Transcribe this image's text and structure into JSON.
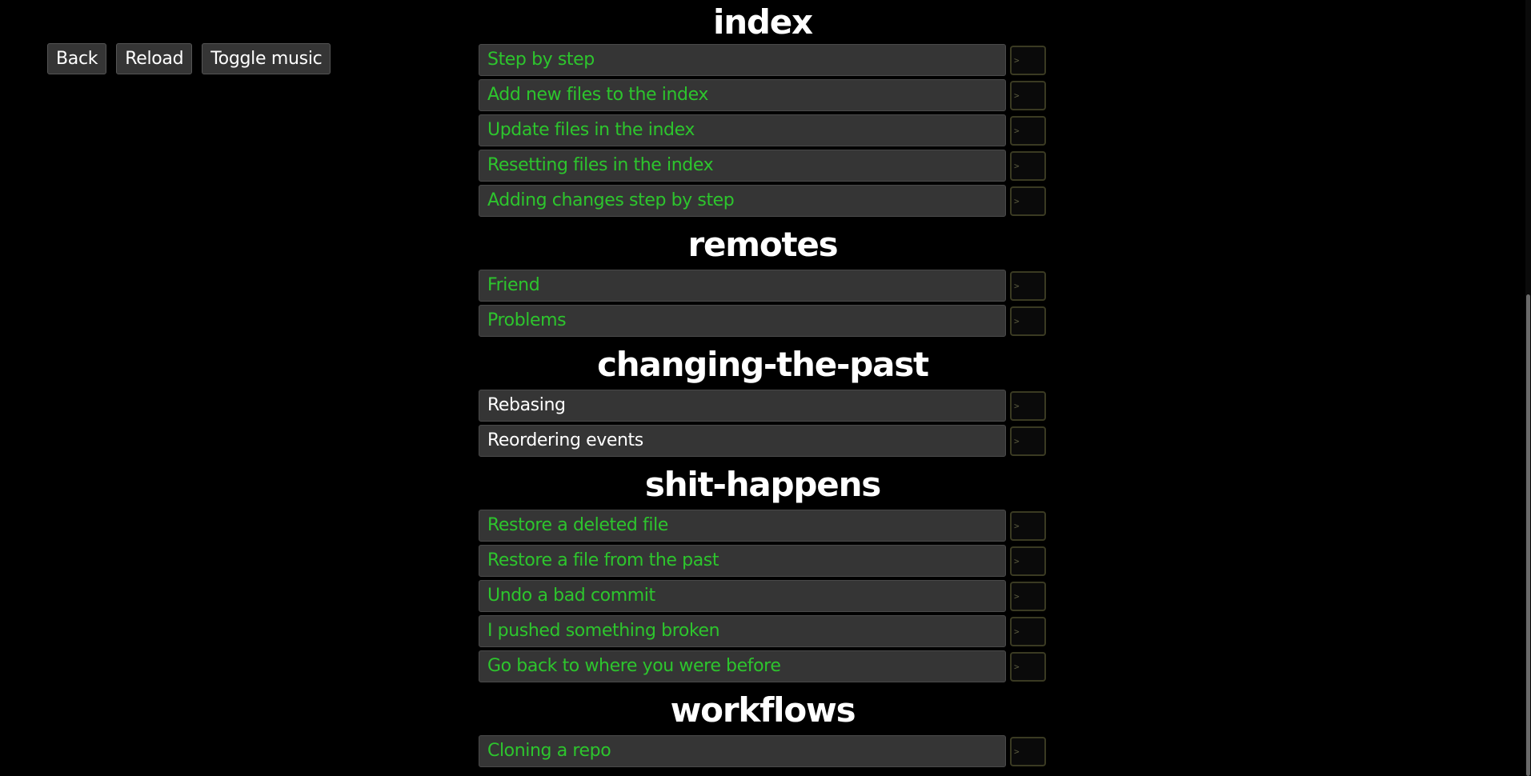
{
  "toolbar": {
    "back_label": "Back",
    "reload_label": "Reload",
    "toggle_music_label": "Toggle music"
  },
  "terminal_glyph": ">",
  "chapters": [
    {
      "title": "index",
      "levels": [
        {
          "label": "Step by step",
          "solved": true
        },
        {
          "label": "Add new files to the index",
          "solved": true
        },
        {
          "label": "Update files in the index",
          "solved": true
        },
        {
          "label": "Resetting files in the index",
          "solved": true
        },
        {
          "label": "Adding changes step by step",
          "solved": true
        }
      ]
    },
    {
      "title": "remotes",
      "levels": [
        {
          "label": "Friend",
          "solved": true
        },
        {
          "label": "Problems",
          "solved": true
        }
      ]
    },
    {
      "title": "changing-the-past",
      "levels": [
        {
          "label": "Rebasing",
          "solved": false
        },
        {
          "label": "Reordering events",
          "solved": false
        }
      ]
    },
    {
      "title": "shit-happens",
      "levels": [
        {
          "label": "Restore a deleted file",
          "solved": true
        },
        {
          "label": "Restore a file from the past",
          "solved": true
        },
        {
          "label": "Undo a bad commit",
          "solved": true
        },
        {
          "label": "I pushed something broken",
          "solved": true
        },
        {
          "label": "Go back to where you were before",
          "solved": true
        }
      ]
    },
    {
      "title": "workflows",
      "levels": [
        {
          "label": "Cloning a repo",
          "solved": true
        }
      ]
    }
  ],
  "colors": {
    "background": "#000000",
    "solved_text": "#2dc52d",
    "unsolved_text": "#ffffff",
    "button_bg": "#353535"
  }
}
